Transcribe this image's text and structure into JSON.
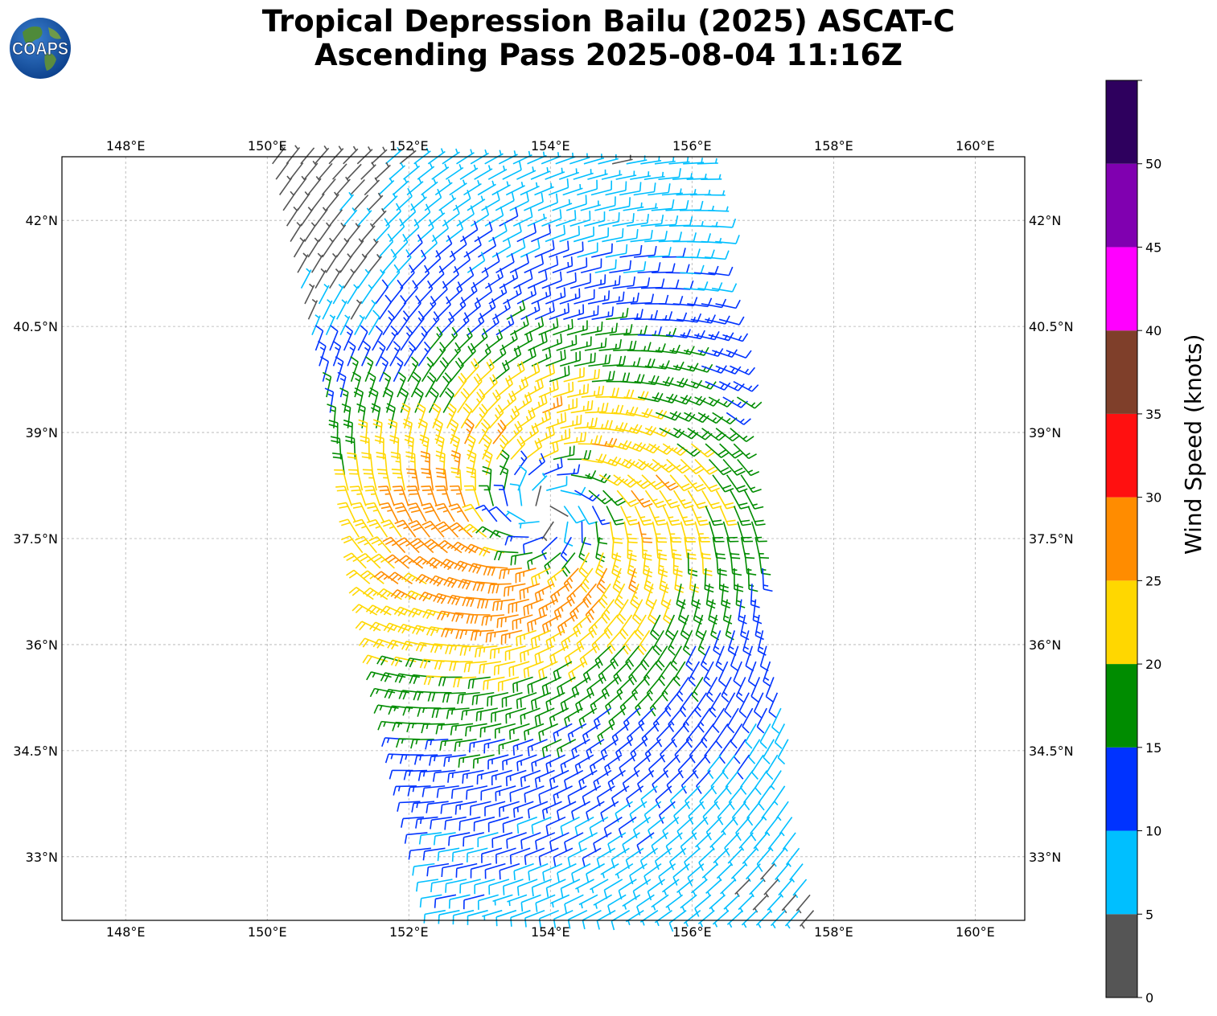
{
  "title": {
    "line1": "Tropical Depression Bailu (2025) ASCAT-C",
    "line2": "Ascending Pass 2025-08-04 11:16Z"
  },
  "logo": {
    "text": "COAPS",
    "icon": "globe-icon"
  },
  "map": {
    "lon_range": [
      147.1,
      160.7
    ],
    "lat_range": [
      32.1,
      42.9
    ],
    "lon_ticks": [
      "148°E",
      "150°E",
      "152°E",
      "154°E",
      "156°E",
      "158°E",
      "160°E"
    ],
    "lat_ticks": [
      "42°N",
      "40.5°N",
      "39°N",
      "37.5°N",
      "36°N",
      "34.5°N",
      "33°N"
    ],
    "gridlines": true,
    "storm_center_approx": {
      "lon": 153.9,
      "lat": 37.9
    },
    "swath_corners": {
      "nw": [
        150.0,
        42.9
      ],
      "ne": [
        156.2,
        42.9
      ],
      "se": [
        157.8,
        32.1
      ],
      "sw": [
        152.5,
        32.1
      ]
    }
  },
  "colorbar": {
    "label": "Wind Speed (knots)",
    "ticks": [
      "0",
      "5",
      "10",
      "15",
      "20",
      "25",
      "30",
      "35",
      "40",
      "45",
      "50"
    ],
    "bins": [
      {
        "from": 0,
        "to": 5,
        "color": "#555555"
      },
      {
        "from": 5,
        "to": 10,
        "color": "#00bfff"
      },
      {
        "from": 10,
        "to": 15,
        "color": "#0033ff"
      },
      {
        "from": 15,
        "to": 20,
        "color": "#008c00"
      },
      {
        "from": 20,
        "to": 25,
        "color": "#ffd700"
      },
      {
        "from": 25,
        "to": 30,
        "color": "#ff8c00"
      },
      {
        "from": 30,
        "to": 35,
        "color": "#ff1010"
      },
      {
        "from": 35,
        "to": 40,
        "color": "#7f3f2a"
      },
      {
        "from": 40,
        "to": 45,
        "color": "#ff00ff"
      },
      {
        "from": 45,
        "to": 50,
        "color": "#8000b0"
      },
      {
        "from": 50,
        "to": 55,
        "color": "#2e005e"
      }
    ]
  }
}
